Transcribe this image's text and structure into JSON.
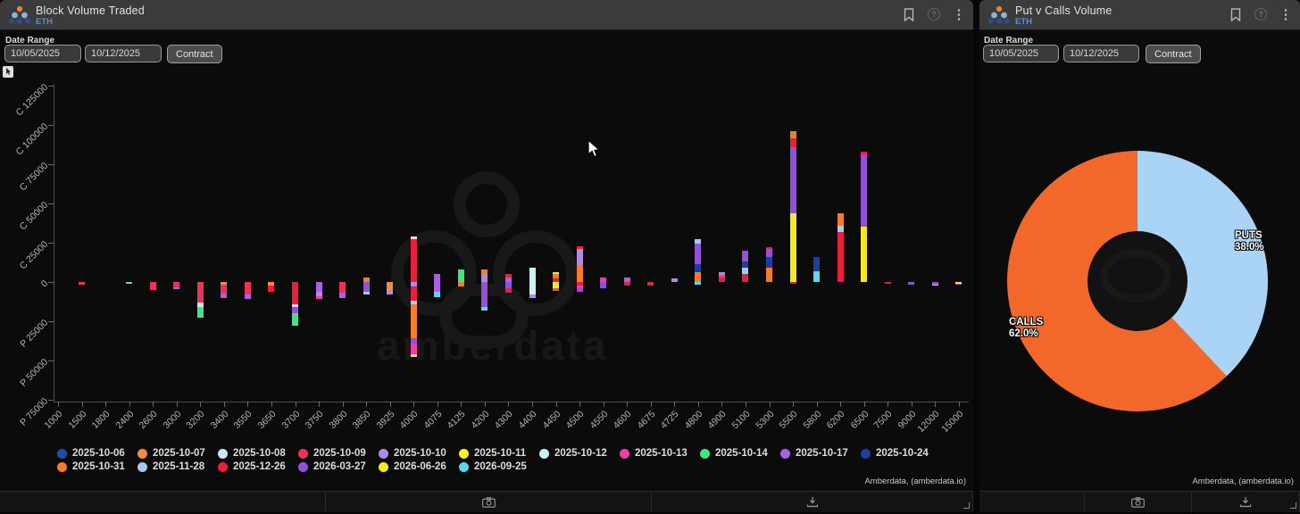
{
  "left_panel": {
    "title": "Block Volume Traded",
    "subtitle": "ETH",
    "date_range_label": "Date Range",
    "date_from": "10/05/2025",
    "date_to": "10/12/2025",
    "contract_button": "Contract",
    "attribution": "Amberdata, (amberdata.io)"
  },
  "right_panel": {
    "title": "Put v Calls Volume",
    "subtitle": "ETH",
    "date_range_label": "Date Range",
    "date_from": "10/05/2025",
    "date_to": "10/12/2025",
    "contract_button": "Contract",
    "attribution": "Amberdata, (amberdata.io)"
  },
  "chart_data": [
    {
      "type": "bar",
      "stacked": true,
      "panel": "left",
      "title": "Block Volume Traded",
      "grid": false,
      "legend_position": "bottom",
      "ylim": [
        -75000,
        125000
      ],
      "y_ticks": [
        {
          "label": "C 125000",
          "value": 125000
        },
        {
          "label": "C 100000",
          "value": 100000
        },
        {
          "label": "C 75000",
          "value": 75000
        },
        {
          "label": "C 50000",
          "value": 50000
        },
        {
          "label": "C 25000",
          "value": 25000
        },
        {
          "label": "0",
          "value": 0
        },
        {
          "label": "P 25000",
          "value": -25000
        },
        {
          "label": "P 50000",
          "value": -50000
        },
        {
          "label": "P 75000",
          "value": -75000
        }
      ],
      "categories": [
        "1000",
        "1500",
        "1800",
        "2400",
        "2600",
        "3000",
        "3200",
        "3400",
        "3550",
        "3650",
        "3700",
        "3750",
        "3800",
        "3850",
        "3925",
        "4000",
        "4075",
        "4125",
        "4200",
        "4300",
        "4400",
        "4450",
        "4500",
        "4550",
        "4600",
        "4675",
        "4725",
        "4800",
        "4900",
        "5100",
        "5300",
        "5500",
        "5800",
        "6200",
        "6500",
        "7500",
        "9000",
        "12000",
        "15000"
      ],
      "series": [
        {
          "name": "2025-10-06",
          "color": "#1e4fa3"
        },
        {
          "name": "2025-10-07",
          "color": "#f58b3e"
        },
        {
          "name": "2025-10-08",
          "color": "#cfe4f7"
        },
        {
          "name": "2025-10-09",
          "color": "#ea3358"
        },
        {
          "name": "2025-10-10",
          "color": "#b28ae0"
        },
        {
          "name": "2025-10-11",
          "color": "#f9ee2e"
        },
        {
          "name": "2025-10-12",
          "color": "#c8f3f7"
        },
        {
          "name": "2025-10-13",
          "color": "#f03fa4"
        },
        {
          "name": "2025-10-14",
          "color": "#3fe683"
        },
        {
          "name": "2025-10-17",
          "color": "#a963e0"
        },
        {
          "name": "2025-10-24",
          "color": "#1c3f9e"
        },
        {
          "name": "2025-10-31",
          "color": "#f57c28"
        },
        {
          "name": "2025-11-28",
          "color": "#a6c9ef"
        },
        {
          "name": "2025-12-26",
          "color": "#e8203e"
        },
        {
          "name": "2026-03-27",
          "color": "#9350d8"
        },
        {
          "name": "2026-06-26",
          "color": "#f5ea20"
        },
        {
          "name": "2026-09-25",
          "color": "#59d7ee"
        }
      ],
      "legend_rows": [
        11,
        6
      ],
      "bars": [
        {
          "x": "1000",
          "segments": []
        },
        {
          "x": "1500",
          "segments": [
            [
              "2025-10-09",
              -1500
            ]
          ]
        },
        {
          "x": "1800",
          "segments": []
        },
        {
          "x": "2400",
          "segments": [
            [
              "2026-09-25",
              -1200
            ]
          ]
        },
        {
          "x": "2600",
          "segments": [
            [
              "2025-10-09",
              -5000
            ]
          ]
        },
        {
          "x": "3000",
          "segments": [
            [
              "2025-10-09",
              -3500
            ],
            [
              "2025-10-17",
              -1200
            ]
          ]
        },
        {
          "x": "3200",
          "segments": [
            [
              "2025-10-09",
              -13000
            ],
            [
              "2025-10-08",
              -3000
            ],
            [
              "2025-10-14",
              -7000
            ]
          ]
        },
        {
          "x": "3400",
          "segments": [
            [
              "2025-10-07",
              -1500
            ],
            [
              "2025-10-09",
              -6000
            ],
            [
              "2025-10-17",
              -3000
            ]
          ]
        },
        {
          "x": "3550",
          "segments": [
            [
              "2025-10-09",
              -8000
            ],
            [
              "2025-10-17",
              -3000
            ]
          ]
        },
        {
          "x": "3650",
          "segments": [
            [
              "2025-10-07",
              -2000
            ],
            [
              "2025-12-26",
              -4000
            ]
          ]
        },
        {
          "x": "3700",
          "segments": [
            [
              "2025-12-26",
              -14000
            ],
            [
              "2025-10-08",
              -2000
            ],
            [
              "2026-03-27",
              -4000
            ],
            [
              "2025-10-14",
              -8000
            ]
          ]
        },
        {
          "x": "3750",
          "segments": [
            [
              "2025-10-17",
              -6000
            ],
            [
              "2025-10-10",
              -3000
            ],
            [
              "2025-10-13",
              -2000
            ]
          ]
        },
        {
          "x": "3800",
          "segments": [
            [
              "2025-10-09",
              -7000
            ],
            [
              "2025-10-17",
              -3000
            ]
          ]
        },
        {
          "x": "3850",
          "segments": [
            [
              "2025-10-31",
              3000
            ],
            [
              "2026-03-27",
              -6000
            ],
            [
              "2025-11-28",
              -2000
            ]
          ]
        },
        {
          "x": "3925",
          "segments": [
            [
              "2025-10-07",
              -5000
            ],
            [
              "2025-10-10",
              -3000
            ]
          ]
        },
        {
          "x": "4000",
          "segments": [
            [
              "2025-12-26",
              27000
            ],
            [
              "2025-10-08",
              2000
            ],
            [
              "2025-10-10",
              -3000
            ],
            [
              "2025-12-26",
              -9000
            ],
            [
              "2025-11-28",
              -2000
            ],
            [
              "2025-10-31",
              -22000
            ],
            [
              "2026-03-27",
              -3000
            ],
            [
              "2025-10-13",
              -7000
            ],
            [
              "2026-06-26",
              -2000
            ]
          ]
        },
        {
          "x": "4075",
          "segments": [
            [
              "2025-10-17",
              5000
            ],
            [
              "2025-10-17",
              -6500
            ],
            [
              "2026-09-25",
              -3000
            ]
          ]
        },
        {
          "x": "4125",
          "segments": [
            [
              "2025-10-14",
              8000
            ],
            [
              "2025-10-31",
              -3000
            ]
          ]
        },
        {
          "x": "4200",
          "segments": [
            [
              "2025-10-10",
              5000
            ],
            [
              "2025-10-31",
              3000
            ],
            [
              "2026-03-27",
              -16000
            ],
            [
              "2026-09-25",
              -2000
            ]
          ]
        },
        {
          "x": "4300",
          "segments": [
            [
              "2025-10-17",
              3000
            ],
            [
              "2025-12-26",
              2000
            ],
            [
              "2026-03-27",
              -4000
            ],
            [
              "2025-12-26",
              -3000
            ]
          ]
        },
        {
          "x": "4400",
          "segments": [
            [
              "2025-10-12",
              9000
            ],
            [
              "2025-10-12",
              -8000
            ],
            [
              "2025-10-10",
              -2000
            ]
          ]
        },
        {
          "x": "4450",
          "segments": [
            [
              "2025-12-26",
              2000
            ],
            [
              "2025-10-31",
              3000
            ],
            [
              "2026-06-26",
              1500
            ],
            [
              "2026-06-26",
              -4000
            ],
            [
              "2025-10-13",
              -1500
            ]
          ]
        },
        {
          "x": "4500",
          "segments": [
            [
              "2025-10-31",
              11000
            ],
            [
              "2025-10-10",
              10000
            ],
            [
              "2025-12-26",
              2000
            ],
            [
              "2025-12-26",
              -2000
            ],
            [
              "2025-10-13",
              -2000
            ],
            [
              "2026-03-27",
              -2000
            ]
          ]
        },
        {
          "x": "4550",
          "segments": [
            [
              "2025-10-13",
              3000
            ],
            [
              "2026-03-27",
              -4000
            ]
          ]
        },
        {
          "x": "4600",
          "segments": [
            [
              "2025-10-17",
              3000
            ],
            [
              "2025-12-26",
              -2000
            ]
          ]
        },
        {
          "x": "4675",
          "segments": [
            [
              "2025-12-26",
              -2000
            ]
          ]
        },
        {
          "x": "4725",
          "segments": [
            [
              "2025-10-10",
              2000
            ]
          ]
        },
        {
          "x": "4800",
          "segments": [
            [
              "2025-10-31",
              6000
            ],
            [
              "2025-10-24",
              5500
            ],
            [
              "2026-03-27",
              13000
            ],
            [
              "2025-11-28",
              3000
            ],
            [
              "2026-09-25",
              -1500
            ]
          ]
        },
        {
          "x": "4900",
          "segments": [
            [
              "2025-12-26",
              3000
            ],
            [
              "2025-10-13",
              1500
            ],
            [
              "2025-10-10",
              1500
            ]
          ]
        },
        {
          "x": "5100",
          "segments": [
            [
              "2025-12-26",
              5000
            ],
            [
              "2025-11-28",
              4000
            ],
            [
              "2025-10-24",
              4000
            ],
            [
              "2026-03-27",
              7000
            ]
          ]
        },
        {
          "x": "5300",
          "segments": [
            [
              "2025-10-31",
              9000
            ],
            [
              "2025-10-24",
              7000
            ],
            [
              "2026-03-27",
              5000
            ],
            [
              "2025-12-26",
              1000
            ]
          ]
        },
        {
          "x": "5500",
          "segments": [
            [
              "2026-06-26",
              43500
            ],
            [
              "2026-03-27",
              42500
            ],
            [
              "2025-12-26",
              5500
            ],
            [
              "2025-10-31",
              4500
            ],
            [
              "2025-12-26",
              -1000
            ]
          ]
        },
        {
          "x": "5800",
          "segments": [
            [
              "2026-09-25",
              7000
            ],
            [
              "2025-10-24",
              9000
            ]
          ]
        },
        {
          "x": "6200",
          "segments": [
            [
              "2025-12-26",
              32000
            ],
            [
              "2025-11-28",
              4000
            ],
            [
              "2025-10-31",
              8000
            ]
          ]
        },
        {
          "x": "6500",
          "segments": [
            [
              "2026-06-26",
              35000
            ],
            [
              "2026-03-27",
              46000
            ],
            [
              "2025-12-26",
              2000
            ]
          ]
        },
        {
          "x": "7500",
          "segments": [
            [
              "2025-12-26",
              -1200
            ]
          ]
        },
        {
          "x": "9000",
          "segments": [
            [
              "2026-03-27",
              -1500
            ]
          ]
        },
        {
          "x": "12000",
          "segments": [
            [
              "2026-03-27",
              -1500
            ],
            [
              "2026-06-26",
              -800
            ]
          ]
        },
        {
          "x": "15000",
          "segments": [
            [
              "2026-06-26",
              -1000
            ],
            [
              "2026-03-27",
              -800
            ]
          ]
        }
      ]
    },
    {
      "type": "pie",
      "donut": true,
      "panel": "right",
      "title": "Put v Calls Volume",
      "start_angle": "12 o'clock, clockwise",
      "slices": [
        {
          "label": "PUTS",
          "pct": 38.0,
          "pct_label": "38.0%",
          "color": "#aad4f5"
        },
        {
          "label": "CALLS",
          "pct": 62.0,
          "pct_label": "62.0%",
          "color": "#f2672a"
        }
      ]
    }
  ]
}
